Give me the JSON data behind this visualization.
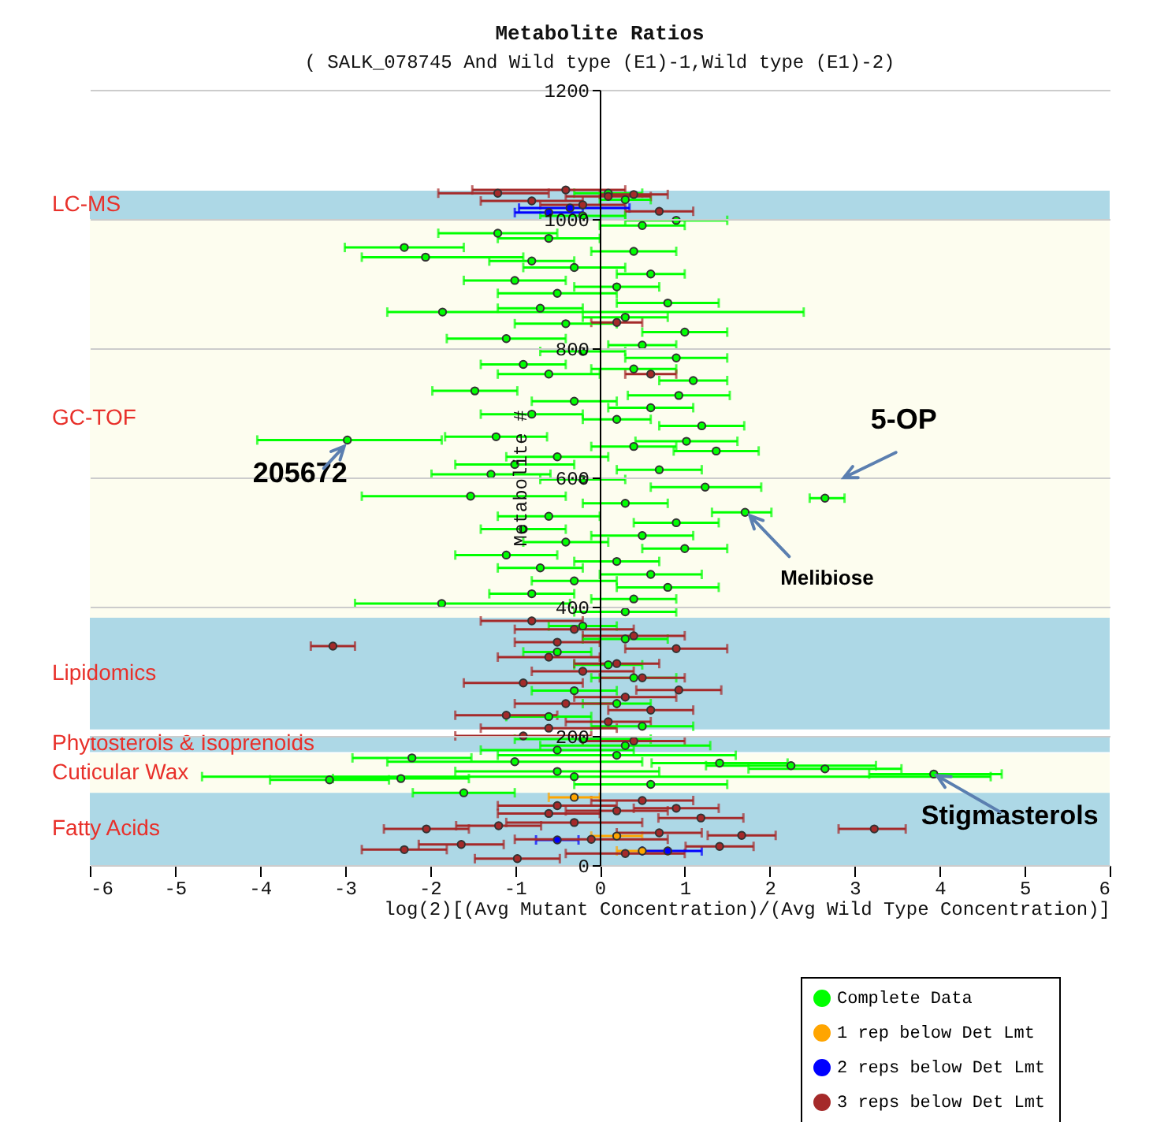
{
  "chart_data": {
    "type": "scatter",
    "title": "Metabolite Ratios",
    "subtitle": "( SALK_078745 And Wild type (E1)-1,Wild type (E1)-2)",
    "xlabel": "log(2)[(Avg Mutant Concentration)/(Avg Wild Type Concentration)]",
    "ylabel": "Metabolite #",
    "xlim": [
      -6,
      6
    ],
    "xticks": [
      -6,
      -5,
      -4,
      -3,
      -2,
      -1,
      0,
      1,
      2,
      3,
      4,
      5,
      6
    ],
    "ylim": [
      0,
      1200
    ],
    "yticks": [
      0,
      200,
      400,
      600,
      800,
      1000,
      1200
    ],
    "grid": "y",
    "legend": "bottom right",
    "marker": "circle",
    "bands": [
      {
        "axis": "y",
        "from": 1000,
        "to": 1044,
        "label": "LC-MS",
        "color": "#add8e6"
      },
      {
        "axis": "y",
        "from": 383,
        "to": 1000,
        "label": "GC-TOF",
        "color": "#fdfdef"
      },
      {
        "axis": "y",
        "from": 210,
        "to": 383,
        "label": "Lipidomics",
        "color": "#add8e6"
      },
      {
        "axis": "y",
        "from": 175,
        "to": 200,
        "label": "Phytosterols & Isoprenoids",
        "color": "#add8e6"
      },
      {
        "axis": "y",
        "from": 112,
        "to": 173,
        "label": "Cuticular Wax",
        "color": "#fdfdef"
      },
      {
        "axis": "y",
        "from": 0,
        "to": 112,
        "label": "Fatty Acids",
        "color": "#add8e6"
      }
    ],
    "annotations": [
      {
        "text": "205672",
        "x": -2.97,
        "y": 658
      },
      {
        "text": "5-OP",
        "x": 2.65,
        "y": 568
      },
      {
        "text": "Melibiose",
        "x": 1.71,
        "y": 546
      },
      {
        "text": "Stigmasterols",
        "x": 3.93,
        "y": 141
      }
    ],
    "series": [
      {
        "name": "Complete Data",
        "color": "#00ff00",
        "x": [
          0.3,
          0.1,
          -0.2,
          0.9,
          0.5,
          -1.2,
          -0.6,
          -2.3,
          -2.05,
          0.4,
          -0.8,
          -0.3,
          0.6,
          -1.0,
          0.2,
          -0.5,
          -1.85,
          0.8,
          -0.7,
          0.3,
          -0.4,
          1.0,
          -1.1,
          0.5,
          -0.2,
          0.9,
          -0.9,
          0.4,
          -0.6,
          1.1,
          -1.47,
          0.93,
          -0.3,
          0.6,
          -0.8,
          0.2,
          1.2,
          -1.22,
          -2.97,
          1.02,
          0.4,
          1.37,
          -0.5,
          -1.0,
          0.7,
          -1.28,
          -0.2,
          1.24,
          -1.52,
          2.65,
          0.3,
          1.71,
          -0.6,
          0.9,
          -0.9,
          0.5,
          -0.4,
          1.0,
          -1.1,
          0.2,
          -0.7,
          0.6,
          -0.3,
          0.8,
          -0.8,
          0.4,
          -1.86,
          0.3,
          -0.2,
          0.3,
          -0.5,
          0.1,
          0.4,
          -0.3,
          0.2,
          -0.6,
          0.5,
          -0.2,
          0.3,
          -0.5,
          -3.18,
          3.93,
          -2.34,
          2.65,
          2.25,
          1.41,
          -1.6,
          -2.21,
          -0.5,
          0.6,
          -1.0,
          0.2,
          -0.3
        ],
        "values": [
          1030,
          1040,
          1005,
          998,
          990,
          978,
          970,
          956,
          941,
          950,
          935,
          925,
          915,
          905,
          895,
          885,
          856,
          870,
          862,
          848,
          838,
          825,
          815,
          805,
          795,
          785,
          775,
          768,
          760,
          750,
          734,
          727,
          718,
          708,
          698,
          690,
          680,
          663,
          658,
          656,
          648,
          641,
          632,
          620,
          612,
          605,
          597,
          585,
          571,
          568,
          560,
          546,
          540,
          530,
          520,
          510,
          500,
          490,
          480,
          470,
          460,
          450,
          440,
          430,
          420,
          412,
          405,
          392,
          370,
          350,
          330,
          310,
          290,
          270,
          250,
          230,
          215,
          195,
          185,
          178,
          132,
          141,
          134,
          149,
          154,
          158,
          112,
          166,
          145,
          125,
          160,
          170,
          137
        ],
        "xerrors": [
          0.3,
          0.4,
          0.5,
          0.6,
          0.5,
          0.7,
          0.6,
          0.7,
          [
            -2.8,
            -0.9
          ],
          0.5,
          0.5,
          0.6,
          0.4,
          0.6,
          0.5,
          0.7,
          [
            -2.5,
            2.4
          ],
          0.6,
          0.5,
          0.5,
          0.6,
          0.5,
          0.7,
          0.4,
          0.5,
          0.6,
          0.5,
          0.5,
          0.6,
          0.4,
          0.5,
          0.6,
          0.5,
          0.5,
          0.6,
          0.4,
          0.5,
          0.6,
          [
            -4.03,
            -1.86
          ],
          0.6,
          0.5,
          0.5,
          0.6,
          0.7,
          0.5,
          0.7,
          0.5,
          [
            0.6,
            1.9
          ],
          [
            -2.8,
            -0.4
          ],
          [
            2.47,
            2.88
          ],
          0.5,
          [
            1.32,
            2.02
          ],
          0.6,
          0.5,
          0.5,
          0.6,
          0.5,
          0.5,
          0.6,
          0.5,
          0.5,
          0.6,
          0.5,
          0.6,
          0.5,
          0.5,
          [
            -2.88,
            -0.35
          ],
          0.6,
          0.4,
          0.5,
          0.4,
          0.4,
          0.5,
          0.5,
          0.4,
          0.5,
          0.6,
          0.8,
          1.0,
          0.9,
          0.7,
          [
            3.17,
            4.73
          ],
          0.8,
          0.9,
          1.0,
          0.8,
          0.6,
          0.7,
          1.2,
          0.9,
          1.5,
          1.4,
          [
            -4.68,
            4.6
          ]
        ]
      },
      {
        "name": "1 rep below Det Lmt",
        "color": "#ffa500",
        "x": [
          -0.3,
          0.2,
          0.5
        ],
        "values": [
          105,
          45,
          22
        ],
        "xerrors": [
          0.3,
          0.3,
          0.3
        ]
      },
      {
        "name": "2 reps below Det Lmt",
        "color": "#0000ff",
        "x": [
          -0.35,
          -0.6,
          -0.5,
          0.8
        ],
        "values": [
          1017,
          1010,
          39,
          22
        ],
        "xerrors": [
          [
            -0.95,
            0.35
          ],
          0.4,
          [
            -0.75,
            -0.25
          ],
          [
            0.5,
            1.2
          ]
        ]
      },
      {
        "name": "3 reps below Det Lmt",
        "color": "#a52a2a",
        "x": [
          -1.2,
          -0.4,
          0.1,
          -0.8,
          0.4,
          -0.2,
          0.7,
          0.6,
          0.2,
          -3.14,
          -0.8,
          -0.3,
          0.4,
          -0.5,
          0.9,
          -0.6,
          0.2,
          -0.2,
          0.5,
          -0.9,
          0.93,
          0.3,
          -0.4,
          0.6,
          -1.1,
          0.1,
          -0.6,
          -0.9,
          0.4,
          3.23,
          -2.04,
          -2.3,
          -1.63,
          -1.19,
          1.41,
          1.67,
          1.19,
          -0.97,
          0.5,
          -0.5,
          0.2,
          -0.3,
          0.7,
          -0.1,
          0.3,
          -0.6,
          0.9
        ],
        "values": [
          1040,
          1045,
          1035,
          1028,
          1038,
          1022,
          1012,
          760,
          840,
          339,
          378,
          365,
          355,
          345,
          335,
          322,
          312,
          300,
          290,
          282,
          271,
          260,
          250,
          240,
          232,
          222,
          212,
          200,
          192,
          56,
          56,
          24,
          32,
          61,
          29,
          46,
          73,
          10,
          100,
          92,
          84,
          66,
          50,
          40,
          18,
          80,
          88
        ],
        "xerrors": [
          [
            -1.9,
            -0.6
          ],
          [
            -1.5,
            0.3
          ],
          0.5,
          0.6,
          0.4,
          0.5,
          0.4,
          0.3,
          0.3,
          [
            -3.4,
            -2.88
          ],
          0.6,
          0.7,
          0.6,
          0.5,
          0.6,
          0.6,
          0.5,
          0.6,
          0.5,
          0.7,
          0.5,
          0.6,
          0.6,
          0.5,
          0.6,
          0.5,
          0.8,
          0.8,
          0.6,
          [
            2.81,
            3.6
          ],
          0.5,
          0.5,
          0.5,
          0.5,
          0.4,
          0.4,
          0.5,
          0.5,
          0.6,
          0.7,
          0.6,
          0.8,
          0.5,
          0.9,
          0.7,
          0.6,
          0.5
        ]
      }
    ]
  }
}
